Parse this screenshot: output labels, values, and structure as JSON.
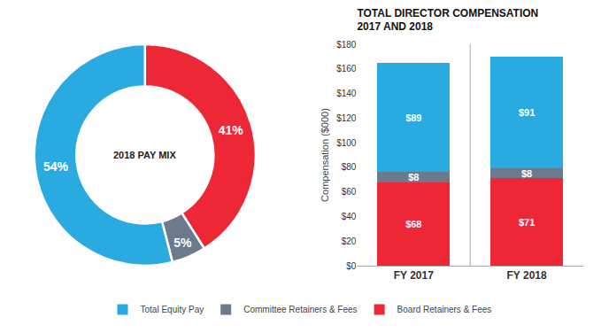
{
  "chart_data": [
    {
      "type": "donut",
      "values": [
        41,
        5,
        54
      ],
      "value_labels": [
        "41%",
        "5%",
        "54%"
      ],
      "colors": [
        "#EE2737",
        "#6B7B8D",
        "#29ABE2"
      ],
      "annotations": [
        "2018 PAY MIX"
      ],
      "data_labels": true
    },
    {
      "type": "bar",
      "title": "TOTAL DIRECTOR COMPENSATION\n2017 AND 2018",
      "categories": [
        "FY 2017",
        "FY 2018"
      ],
      "series": [
        {
          "name": "Board Retainers & Fees",
          "color": "#EE2737",
          "values": [
            68,
            71
          ],
          "value_labels": [
            "$68",
            "$71"
          ]
        },
        {
          "name": "Committee Retainers & Fees",
          "color": "#6B7B8D",
          "values": [
            8,
            8
          ],
          "value_labels": [
            "$8",
            "$8"
          ]
        },
        {
          "name": "Total Equity Pay",
          "color": "#29ABE2",
          "values": [
            89,
            91
          ],
          "value_labels": [
            "$89",
            "$91"
          ]
        }
      ],
      "stacked": true,
      "data_labels": true,
      "ylabel": "Compensation ($000)",
      "ylim": [
        0,
        180
      ],
      "yticks": [
        {
          "value": 0,
          "label": "$0"
        },
        {
          "value": 20,
          "label": "$20"
        },
        {
          "value": 40,
          "label": "$40"
        },
        {
          "value": 60,
          "label": "$60"
        },
        {
          "value": 80,
          "label": "$80"
        },
        {
          "value": 100,
          "label": "$100"
        },
        {
          "value": 120,
          "label": "$120"
        },
        {
          "value": 140,
          "label": "$140"
        },
        {
          "value": 160,
          "label": "$160"
        },
        {
          "value": 180,
          "label": "$180"
        }
      ],
      "grid": false,
      "legend": "bottom"
    }
  ]
}
